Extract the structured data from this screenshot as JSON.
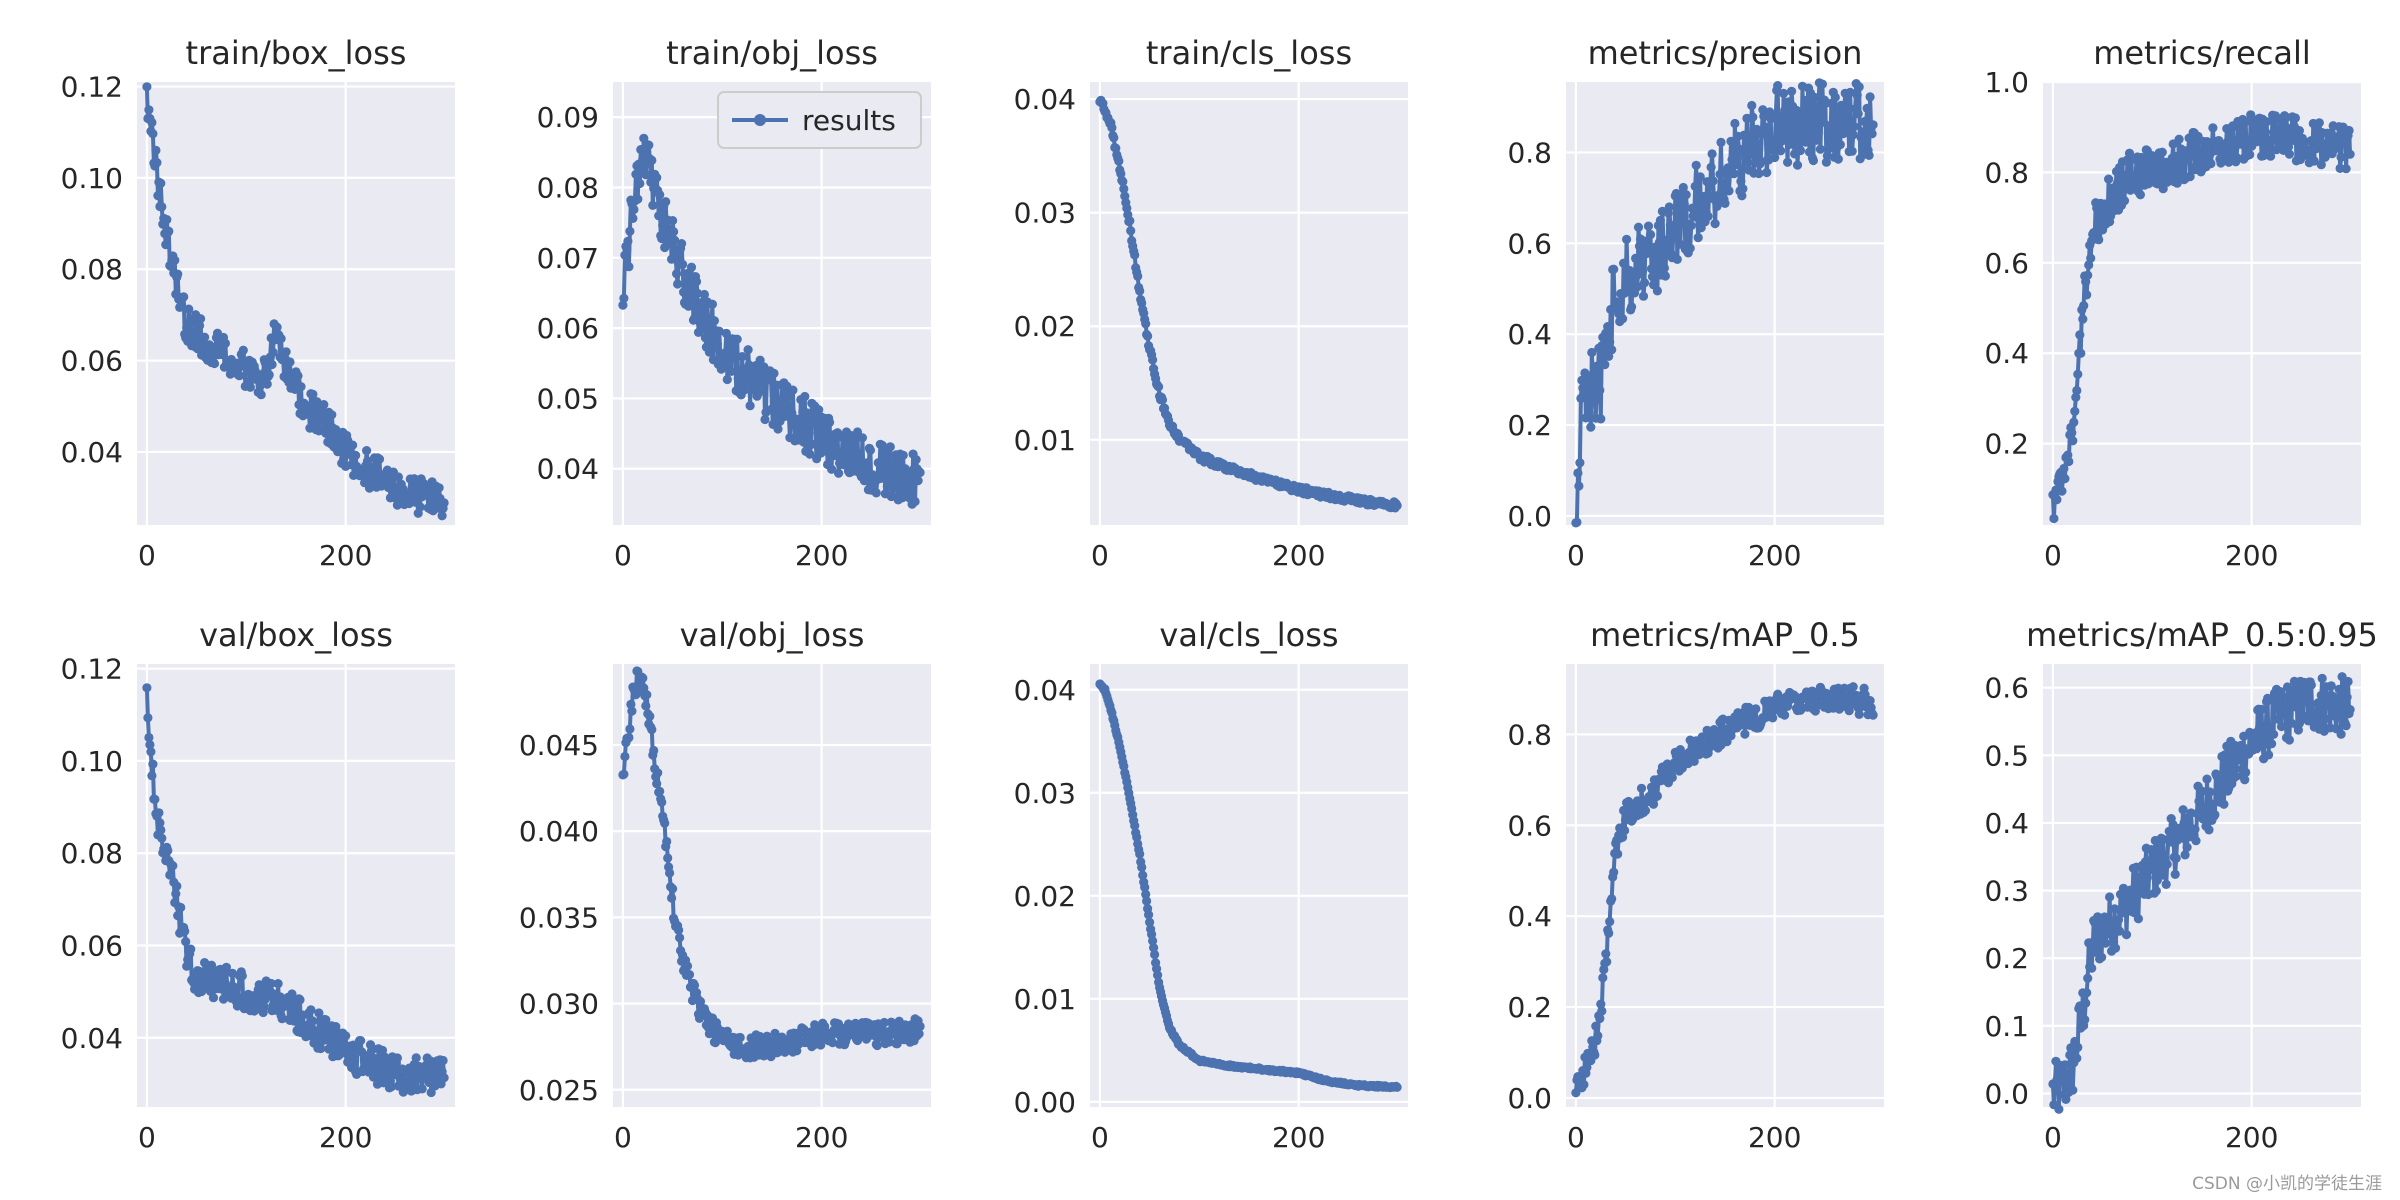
{
  "colors": {
    "series": "#4c72b0",
    "panel_bg": "#eaeaf2",
    "grid": "#ffffff"
  },
  "watermark": "CSDN @小凯的学徒生涯",
  "chart_data": [
    {
      "type": "line",
      "title": "train/box_loss",
      "xlabel": "",
      "ylabel": "",
      "xlim": [
        -10,
        310
      ],
      "ylim": [
        0.024,
        0.121
      ],
      "xticks": [
        0,
        200
      ],
      "yticks": [
        0.04,
        0.06,
        0.08,
        0.1,
        0.12
      ],
      "ytick_labels": [
        "0.04",
        "0.06",
        "0.08",
        "0.10",
        "0.12"
      ],
      "grid": true,
      "legend": null,
      "series": [
        {
          "name": "results",
          "n": 300,
          "noise": 0.004,
          "x": [
            0,
            5,
            10,
            20,
            30,
            40,
            60,
            80,
            100,
            120,
            130,
            140,
            160,
            180,
            200,
            230,
            260,
            299
          ],
          "y": [
            0.117,
            0.11,
            0.101,
            0.088,
            0.076,
            0.068,
            0.064,
            0.061,
            0.058,
            0.056,
            0.067,
            0.058,
            0.05,
            0.046,
            0.04,
            0.035,
            0.031,
            0.029
          ]
        }
      ]
    },
    {
      "type": "line",
      "title": "train/obj_loss",
      "xlabel": "",
      "ylabel": "",
      "xlim": [
        -10,
        310
      ],
      "ylim": [
        0.032,
        0.095
      ],
      "xticks": [
        0,
        200
      ],
      "yticks": [
        0.04,
        0.05,
        0.06,
        0.07,
        0.08,
        0.09
      ],
      "ytick_labels": [
        "0.04",
        "0.05",
        "0.06",
        "0.07",
        "0.08",
        "0.09"
      ],
      "grid": true,
      "legend": {
        "label": "results",
        "loc": "upper right"
      },
      "series": [
        {
          "name": "results",
          "n": 300,
          "noise": 0.004,
          "x": [
            0,
            5,
            10,
            15,
            20,
            25,
            30,
            45,
            60,
            80,
            100,
            120,
            150,
            180,
            200,
            230,
            260,
            299
          ],
          "y": [
            0.066,
            0.07,
            0.078,
            0.082,
            0.084,
            0.083,
            0.08,
            0.074,
            0.068,
            0.062,
            0.057,
            0.054,
            0.05,
            0.047,
            0.044,
            0.042,
            0.04,
            0.038
          ]
        }
      ]
    },
    {
      "type": "line",
      "title": "train/cls_loss",
      "xlabel": "",
      "ylabel": "",
      "xlim": [
        -10,
        310
      ],
      "ylim": [
        0.0025,
        0.0415
      ],
      "xticks": [
        0,
        200
      ],
      "yticks": [
        0.01,
        0.02,
        0.03,
        0.04
      ],
      "ytick_labels": [
        "0.01",
        "0.02",
        "0.03",
        "0.04"
      ],
      "grid": true,
      "legend": null,
      "series": [
        {
          "name": "results",
          "n": 300,
          "noise": 0.0003,
          "x": [
            0,
            10,
            20,
            30,
            40,
            50,
            60,
            70,
            80,
            100,
            130,
            160,
            200,
            250,
            299
          ],
          "y": [
            0.04,
            0.038,
            0.034,
            0.029,
            0.023,
            0.018,
            0.014,
            0.0115,
            0.01,
            0.0085,
            0.0075,
            0.0066,
            0.0056,
            0.0048,
            0.0042
          ]
        }
      ]
    },
    {
      "type": "line",
      "title": "metrics/precision",
      "xlabel": "",
      "ylabel": "",
      "xlim": [
        -10,
        310
      ],
      "ylim": [
        -0.02,
        0.955
      ],
      "xticks": [
        0,
        200
      ],
      "yticks": [
        0.0,
        0.2,
        0.4,
        0.6,
        0.8
      ],
      "ytick_labels": [
        "0.0",
        "0.2",
        "0.4",
        "0.6",
        "0.8"
      ],
      "grid": true,
      "legend": null,
      "series": [
        {
          "name": "results",
          "n": 300,
          "noise": 0.09,
          "x": [
            0,
            5,
            10,
            20,
            30,
            40,
            60,
            80,
            100,
            120,
            140,
            160,
            180,
            200,
            230,
            260,
            299
          ],
          "y": [
            0.03,
            0.2,
            0.3,
            0.25,
            0.35,
            0.5,
            0.55,
            0.58,
            0.62,
            0.68,
            0.72,
            0.78,
            0.82,
            0.86,
            0.86,
            0.87,
            0.87
          ]
        }
      ]
    },
    {
      "type": "line",
      "title": "metrics/recall",
      "xlabel": "",
      "ylabel": "",
      "xlim": [
        -10,
        310
      ],
      "ylim": [
        0.02,
        1.0
      ],
      "xticks": [
        0,
        200
      ],
      "yticks": [
        0.2,
        0.4,
        0.6,
        0.8,
        1.0
      ],
      "ytick_labels": [
        "0.2",
        "0.4",
        "0.6",
        "0.8",
        "1.0"
      ],
      "grid": true,
      "legend": null,
      "series": [
        {
          "name": "results",
          "n": 300,
          "noise": 0.05,
          "x": [
            0,
            10,
            20,
            30,
            40,
            60,
            80,
            100,
            130,
            160,
            200,
            230,
            260,
            299
          ],
          "y": [
            0.08,
            0.12,
            0.22,
            0.5,
            0.68,
            0.75,
            0.8,
            0.8,
            0.83,
            0.86,
            0.88,
            0.88,
            0.87,
            0.85
          ]
        }
      ]
    },
    {
      "type": "line",
      "title": "val/box_loss",
      "xlabel": "",
      "ylabel": "",
      "xlim": [
        -10,
        310
      ],
      "ylim": [
        0.025,
        0.121
      ],
      "xticks": [
        0,
        200
      ],
      "yticks": [
        0.04,
        0.06,
        0.08,
        0.1,
        0.12
      ],
      "ytick_labels": [
        "0.04",
        "0.06",
        "0.08",
        "0.10",
        "0.12"
      ],
      "grid": true,
      "legend": null,
      "series": [
        {
          "name": "results",
          "n": 300,
          "noise": 0.004,
          "x": [
            0,
            5,
            10,
            20,
            30,
            40,
            50,
            70,
            100,
            130,
            160,
            180,
            200,
            230,
            260,
            299
          ],
          "y": [
            0.116,
            0.098,
            0.088,
            0.08,
            0.07,
            0.058,
            0.053,
            0.052,
            0.05,
            0.048,
            0.044,
            0.04,
            0.037,
            0.034,
            0.032,
            0.032
          ]
        }
      ]
    },
    {
      "type": "line",
      "title": "val/obj_loss",
      "xlabel": "",
      "ylabel": "",
      "xlim": [
        -10,
        310
      ],
      "ylim": [
        0.024,
        0.0497
      ],
      "xticks": [
        0,
        200
      ],
      "yticks": [
        0.025,
        0.03,
        0.035,
        0.04,
        0.045
      ],
      "ytick_labels": [
        "0.025",
        "0.030",
        "0.035",
        "0.040",
        "0.045"
      ],
      "grid": true,
      "legend": null,
      "series": [
        {
          "name": "results",
          "n": 300,
          "noise": 0.0007,
          "x": [
            0,
            5,
            10,
            15,
            20,
            25,
            30,
            40,
            50,
            60,
            75,
            90,
            110,
            140,
            170,
            200,
            230,
            260,
            299
          ],
          "y": [
            0.0432,
            0.0455,
            0.0478,
            0.0488,
            0.0485,
            0.047,
            0.045,
            0.041,
            0.036,
            0.0325,
            0.03,
            0.0285,
            0.0275,
            0.0275,
            0.0278,
            0.0282,
            0.0283,
            0.0282,
            0.0285
          ]
        }
      ]
    },
    {
      "type": "line",
      "title": "val/cls_loss",
      "xlabel": "",
      "ylabel": "",
      "xlim": [
        -10,
        310
      ],
      "ylim": [
        -0.0005,
        0.0425
      ],
      "xticks": [
        0,
        200
      ],
      "yticks": [
        0.0,
        0.01,
        0.02,
        0.03,
        0.04
      ],
      "ytick_labels": [
        "0.00",
        "0.01",
        "0.02",
        "0.03",
        "0.04"
      ],
      "grid": true,
      "legend": null,
      "series": [
        {
          "name": "results",
          "n": 300,
          "noise": 0.0001,
          "x": [
            0,
            5,
            10,
            20,
            30,
            40,
            50,
            60,
            70,
            80,
            100,
            130,
            160,
            200,
            230,
            260,
            299
          ],
          "y": [
            0.0405,
            0.04,
            0.0385,
            0.0345,
            0.0295,
            0.024,
            0.0175,
            0.011,
            0.0072,
            0.0055,
            0.004,
            0.0035,
            0.0032,
            0.0028,
            0.002,
            0.0016,
            0.0014
          ]
        }
      ]
    },
    {
      "type": "line",
      "title": "metrics/mAP_0.5",
      "xlabel": "",
      "ylabel": "",
      "xlim": [
        -10,
        310
      ],
      "ylim": [
        -0.02,
        0.955
      ],
      "xticks": [
        0,
        200
      ],
      "yticks": [
        0.0,
        0.2,
        0.4,
        0.6,
        0.8
      ],
      "ytick_labels": [
        "0.0",
        "0.2",
        "0.4",
        "0.6",
        "0.8"
      ],
      "grid": true,
      "legend": null,
      "series": [
        {
          "name": "results",
          "n": 300,
          "noise": 0.03,
          "x": [
            0,
            5,
            10,
            15,
            20,
            25,
            30,
            35,
            40,
            50,
            60,
            80,
            100,
            130,
            160,
            200,
            230,
            260,
            299
          ],
          "y": [
            0.01,
            0.04,
            0.07,
            0.09,
            0.13,
            0.2,
            0.3,
            0.42,
            0.55,
            0.62,
            0.64,
            0.68,
            0.74,
            0.78,
            0.82,
            0.86,
            0.87,
            0.88,
            0.87
          ]
        }
      ]
    },
    {
      "type": "line",
      "title": "metrics/mAP_0.5:0.95",
      "xlabel": "",
      "ylabel": "",
      "xlim": [
        -10,
        310
      ],
      "ylim": [
        -0.02,
        0.635
      ],
      "xticks": [
        0,
        200
      ],
      "yticks": [
        0.0,
        0.1,
        0.2,
        0.3,
        0.4,
        0.5,
        0.6
      ],
      "ytick_labels": [
        "0.0",
        "0.1",
        "0.2",
        "0.3",
        "0.4",
        "0.5",
        "0.6"
      ],
      "grid": true,
      "legend": null,
      "series": [
        {
          "name": "results",
          "n": 300,
          "noise": 0.045,
          "x": [
            0,
            10,
            20,
            30,
            40,
            50,
            70,
            100,
            130,
            160,
            200,
            230,
            260,
            299
          ],
          "y": [
            0.0,
            0.01,
            0.04,
            0.12,
            0.22,
            0.24,
            0.27,
            0.33,
            0.38,
            0.44,
            0.52,
            0.56,
            0.58,
            0.57
          ]
        }
      ]
    }
  ]
}
